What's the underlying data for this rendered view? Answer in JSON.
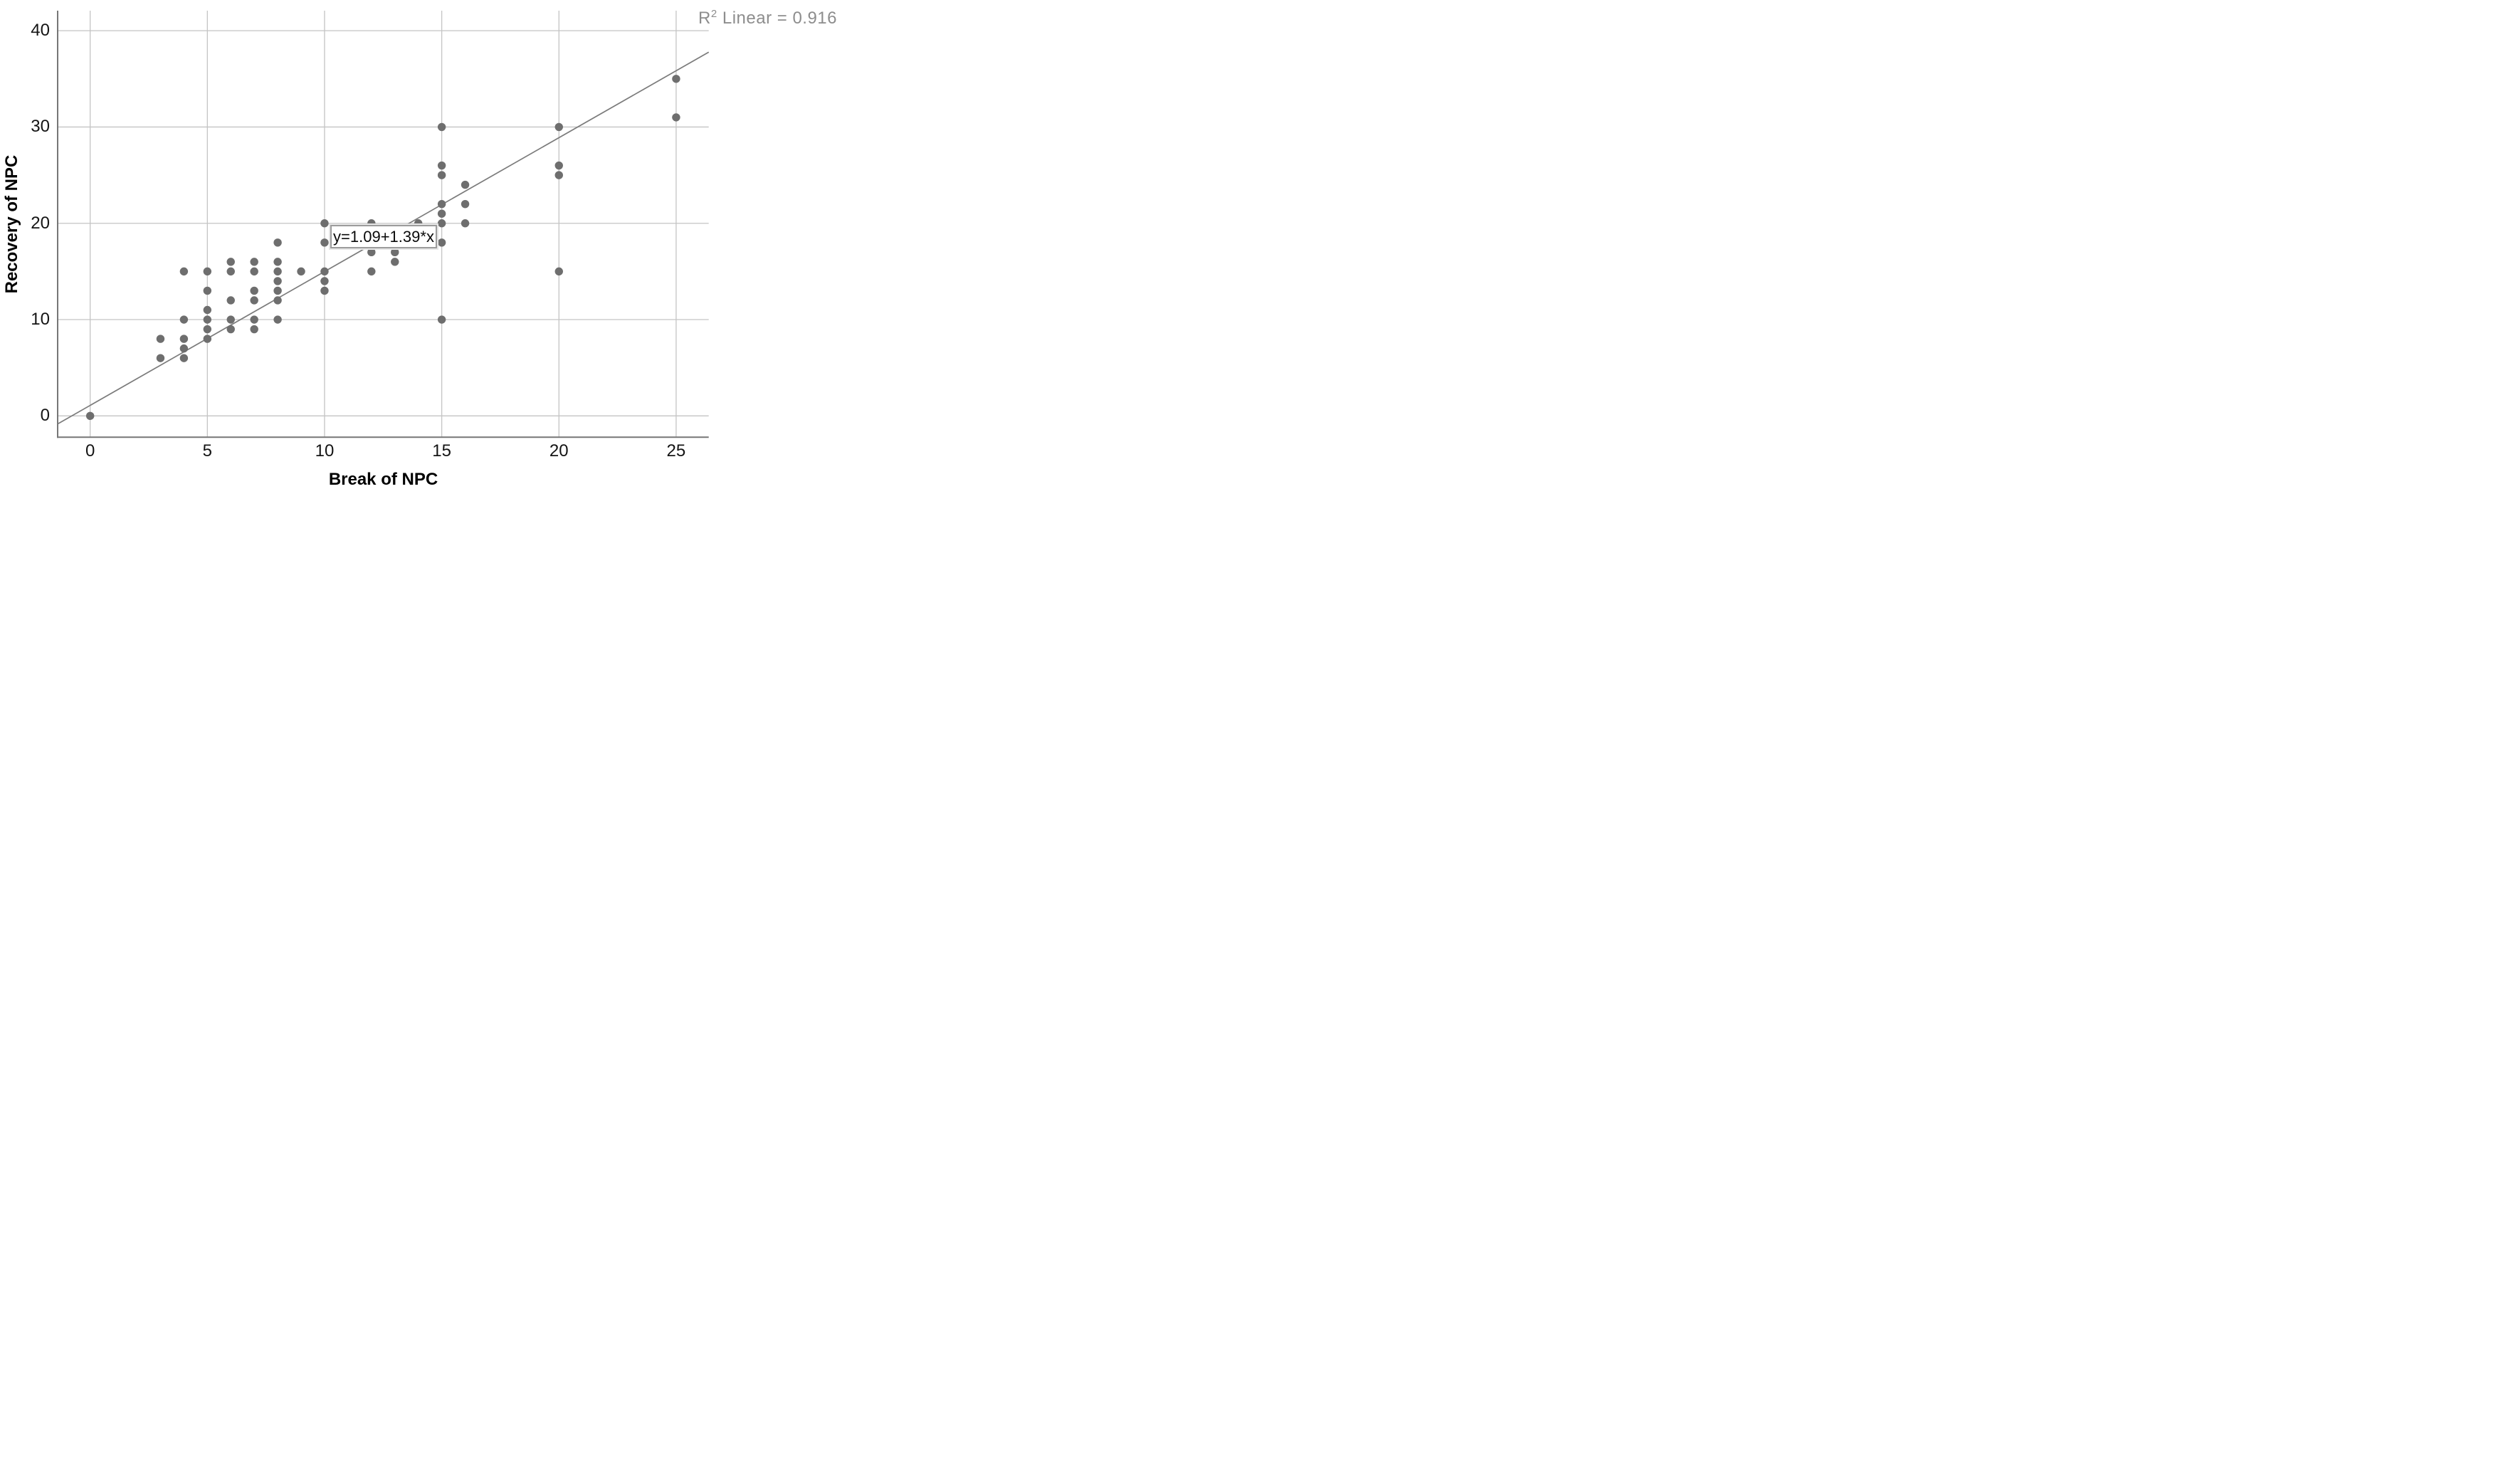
{
  "figure": {
    "background": "#ffffff"
  },
  "annotations": {
    "r2_prefix": "R",
    "r2_superscript": "2",
    "r2_suffix": " Linear = 0.916"
  },
  "chart_data": {
    "type": "scatter",
    "title": "",
    "xlabel": "Break of NPC",
    "ylabel": "Recovery of NPC",
    "x_ticks": [
      0,
      5,
      10,
      15,
      20,
      25
    ],
    "y_ticks": [
      0,
      10,
      20,
      30,
      40
    ],
    "xlim": [
      -1.39,
      26.39
    ],
    "ylim": [
      -2.22,
      42.07
    ],
    "grid": true,
    "legend_position": "none",
    "r_squared": 0.916,
    "regression": {
      "label": "y=1.09+1.39*x",
      "intercept": 1.09,
      "slope": 1.39,
      "line_color": "#7b7b7b"
    },
    "marker": {
      "color": "#6e6e6e",
      "radius": 5.7
    },
    "grid_color": "#c4c4c4",
    "axis_color": "#767676",
    "tick_color": "#141414",
    "annotation_color": "#8d8d8d",
    "points": [
      [
        0,
        0
      ],
      [
        3,
        6
      ],
      [
        3,
        8
      ],
      [
        4,
        6
      ],
      [
        4,
        7
      ],
      [
        4,
        8
      ],
      [
        4,
        10
      ],
      [
        4,
        15
      ],
      [
        5,
        8
      ],
      [
        5,
        9
      ],
      [
        5,
        10
      ],
      [
        5,
        11
      ],
      [
        5,
        13
      ],
      [
        5,
        15
      ],
      [
        6,
        9
      ],
      [
        6,
        10
      ],
      [
        6,
        12
      ],
      [
        6,
        15
      ],
      [
        6,
        16
      ],
      [
        7,
        9
      ],
      [
        7,
        10
      ],
      [
        7,
        12
      ],
      [
        7,
        13
      ],
      [
        7,
        15
      ],
      [
        7,
        16
      ],
      [
        8,
        10
      ],
      [
        8,
        12
      ],
      [
        8,
        13
      ],
      [
        8,
        14
      ],
      [
        8,
        15
      ],
      [
        8,
        16
      ],
      [
        8,
        18
      ],
      [
        9,
        15
      ],
      [
        10,
        13
      ],
      [
        10,
        14
      ],
      [
        10,
        15
      ],
      [
        10,
        18
      ],
      [
        10,
        20
      ],
      [
        12,
        15
      ],
      [
        12,
        17
      ],
      [
        12,
        20
      ],
      [
        13,
        16
      ],
      [
        13,
        17
      ],
      [
        14,
        20
      ],
      [
        15,
        10
      ],
      [
        15,
        18
      ],
      [
        15,
        20
      ],
      [
        15,
        21
      ],
      [
        15,
        22
      ],
      [
        15,
        25
      ],
      [
        15,
        26
      ],
      [
        15,
        30
      ],
      [
        16,
        20
      ],
      [
        16,
        22
      ],
      [
        16,
        24
      ],
      [
        20,
        15
      ],
      [
        20,
        25
      ],
      [
        20,
        26
      ],
      [
        20,
        30
      ],
      [
        25,
        31
      ],
      [
        25,
        35
      ]
    ]
  }
}
